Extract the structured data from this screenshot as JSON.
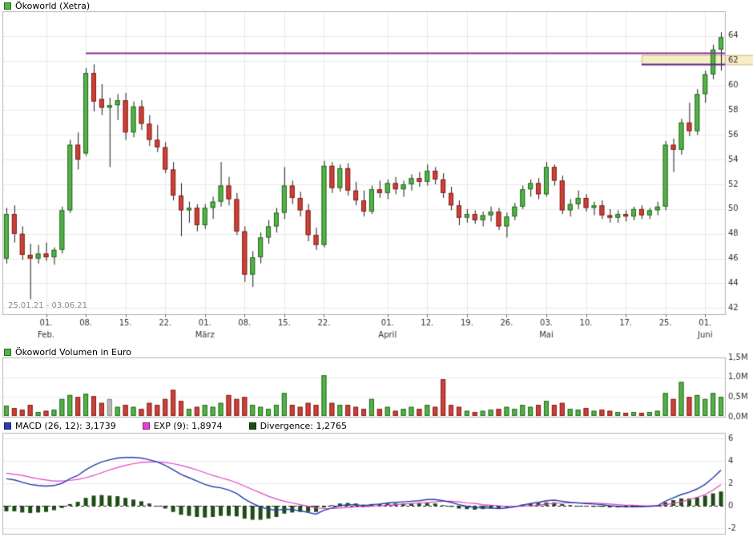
{
  "page": {
    "title": "Ökoworld (Xetra)"
  },
  "panels": {
    "price": {
      "legend": "Ökoworld (Xetra)",
      "swatch": "#57b04a",
      "swatch_border": "#1f6e1a"
    },
    "volume": {
      "legend": "Ökoworld Volumen in Euro",
      "swatch": "#57b04a",
      "swatch_border": "#1f6e1a"
    },
    "macd": {
      "items": [
        {
          "label": "MACD (26, 12): 3,1739",
          "swatch": "#2b3db0",
          "swatch_border": "#1a2566"
        },
        {
          "label": "EXP (9): 1,8974",
          "swatch": "#e145cb",
          "swatch_border": "#8e2380"
        },
        {
          "label": "Divergence: 1,2765",
          "swatch": "#1e4d15",
          "swatch_border": "#0f2e0a"
        }
      ]
    }
  },
  "chart_data": [
    {
      "type": "candlestick",
      "title": "Ökoworld (Xetra)",
      "date_range_label": "25.01.21 - 03.06.21",
      "ylim": [
        41.5,
        66
      ],
      "y_ticks": [
        {
          "v": 42,
          "label": "42"
        },
        {
          "v": 44,
          "label": "44"
        },
        {
          "v": 46,
          "label": "46"
        },
        {
          "v": 48,
          "label": "48"
        },
        {
          "v": 50,
          "label": "50"
        },
        {
          "v": 52,
          "label": "52"
        },
        {
          "v": 54,
          "label": "54"
        },
        {
          "v": 56,
          "label": "56"
        },
        {
          "v": 58,
          "label": "58"
        },
        {
          "v": 60,
          "label": "60"
        },
        {
          "v": 62,
          "label": "62"
        },
        {
          "v": 64,
          "label": "64"
        }
      ],
      "x_ticks_days": [
        {
          "i": 5,
          "label": "01."
        },
        {
          "i": 10,
          "label": "08."
        },
        {
          "i": 15,
          "label": "15."
        },
        {
          "i": 20,
          "label": "22."
        },
        {
          "i": 25,
          "label": "01."
        },
        {
          "i": 30,
          "label": "08."
        },
        {
          "i": 35,
          "label": "15."
        },
        {
          "i": 40,
          "label": "22."
        },
        {
          "i": 48,
          "label": "01."
        },
        {
          "i": 53,
          "label": "12."
        },
        {
          "i": 58,
          "label": "19."
        },
        {
          "i": 63,
          "label": "26."
        },
        {
          "i": 68,
          "label": "03."
        },
        {
          "i": 73,
          "label": "10."
        },
        {
          "i": 78,
          "label": "17."
        },
        {
          "i": 83,
          "label": "25."
        },
        {
          "i": 88,
          "label": "01."
        }
      ],
      "x_ticks_months": [
        {
          "i": 5,
          "label": "Feb."
        },
        {
          "i": 25,
          "label": "März"
        },
        {
          "i": 48,
          "label": "April"
        },
        {
          "i": 68,
          "label": "Mai"
        },
        {
          "i": 88,
          "label": "Juni"
        }
      ],
      "candles": [
        [
          46.0,
          50.1,
          45.6,
          49.6
        ],
        [
          49.6,
          50.3,
          47.3,
          48.0
        ],
        [
          48.0,
          48.6,
          45.9,
          46.3
        ],
        [
          46.3,
          47.2,
          42.7,
          46.0
        ],
        [
          46.0,
          47.1,
          45.6,
          46.4
        ],
        [
          46.4,
          47.3,
          45.8,
          46.1
        ],
        [
          46.1,
          46.9,
          45.5,
          46.7
        ],
        [
          46.7,
          50.2,
          46.4,
          49.9
        ],
        [
          49.9,
          55.6,
          49.7,
          55.2
        ],
        [
          55.2,
          56.2,
          53.2,
          54.0
        ],
        [
          54.5,
          61.4,
          54.3,
          61.0
        ],
        [
          61.0,
          61.7,
          57.9,
          58.7
        ],
        [
          58.9,
          60.1,
          57.6,
          58.2
        ],
        [
          58.2,
          59.0,
          53.4,
          58.4
        ],
        [
          58.4,
          59.3,
          57.2,
          58.8
        ],
        [
          58.8,
          59.4,
          55.6,
          56.2
        ],
        [
          56.2,
          58.7,
          55.8,
          58.3
        ],
        [
          58.3,
          58.8,
          56.4,
          56.9
        ],
        [
          56.9,
          57.6,
          55.1,
          55.6
        ],
        [
          55.6,
          56.8,
          54.6,
          55.0
        ],
        [
          55.0,
          55.4,
          52.9,
          53.2
        ],
        [
          53.2,
          53.8,
          50.7,
          51.1
        ],
        [
          51.1,
          52.1,
          47.8,
          49.9
        ],
        [
          49.9,
          50.6,
          48.9,
          50.1
        ],
        [
          50.1,
          50.4,
          48.2,
          48.7
        ],
        [
          48.7,
          50.4,
          48.4,
          50.1
        ],
        [
          50.1,
          51.0,
          49.2,
          50.6
        ],
        [
          50.6,
          53.8,
          50.2,
          51.9
        ],
        [
          51.9,
          52.6,
          50.3,
          50.8
        ],
        [
          50.8,
          51.3,
          47.9,
          48.2
        ],
        [
          48.2,
          48.6,
          44.1,
          44.7
        ],
        [
          44.7,
          46.6,
          43.7,
          46.1
        ],
        [
          46.1,
          48.1,
          45.6,
          47.7
        ],
        [
          47.7,
          49.1,
          47.2,
          48.6
        ],
        [
          48.6,
          50.1,
          48.1,
          49.7
        ],
        [
          49.7,
          53.4,
          49.2,
          51.9
        ],
        [
          51.9,
          52.3,
          50.4,
          50.9
        ],
        [
          50.9,
          51.4,
          49.4,
          49.9
        ],
        [
          49.9,
          50.4,
          47.4,
          47.9
        ],
        [
          47.9,
          48.5,
          46.7,
          47.1
        ],
        [
          47.1,
          53.9,
          46.9,
          53.5
        ],
        [
          53.5,
          53.8,
          51.3,
          51.7
        ],
        [
          51.7,
          53.6,
          51.4,
          53.3
        ],
        [
          53.3,
          53.7,
          51.1,
          51.5
        ],
        [
          51.5,
          52.2,
          50.3,
          50.7
        ],
        [
          50.7,
          51.5,
          49.4,
          49.8
        ],
        [
          49.8,
          51.9,
          49.6,
          51.6
        ],
        [
          51.6,
          52.3,
          50.9,
          51.3
        ],
        [
          51.3,
          52.4,
          50.8,
          52.1
        ],
        [
          52.1,
          52.6,
          51.2,
          51.6
        ],
        [
          51.6,
          52.3,
          51.0,
          52.0
        ],
        [
          52.0,
          52.8,
          51.5,
          52.5
        ],
        [
          52.5,
          53.0,
          51.8,
          52.2
        ],
        [
          52.2,
          53.6,
          51.9,
          53.1
        ],
        [
          53.1,
          53.4,
          52.0,
          52.4
        ],
        [
          52.4,
          52.9,
          50.9,
          51.3
        ],
        [
          51.3,
          51.8,
          49.9,
          50.3
        ],
        [
          50.3,
          50.7,
          48.7,
          49.3
        ],
        [
          49.3,
          50.0,
          48.9,
          49.6
        ],
        [
          49.6,
          49.9,
          48.8,
          49.1
        ],
        [
          49.1,
          49.8,
          48.6,
          49.5
        ],
        [
          49.5,
          50.2,
          49.0,
          49.8
        ],
        [
          49.8,
          50.1,
          48.3,
          48.6
        ],
        [
          48.6,
          49.7,
          47.7,
          49.4
        ],
        [
          49.4,
          50.5,
          49.1,
          50.2
        ],
        [
          50.2,
          51.9,
          50.0,
          51.6
        ],
        [
          51.6,
          52.4,
          51.0,
          52.1
        ],
        [
          52.1,
          52.5,
          50.8,
          51.2
        ],
        [
          51.2,
          53.8,
          51.0,
          53.4
        ],
        [
          53.4,
          53.6,
          51.9,
          52.3
        ],
        [
          52.3,
          52.7,
          49.6,
          49.9
        ],
        [
          49.9,
          50.8,
          49.4,
          50.4
        ],
        [
          50.4,
          51.5,
          50.0,
          50.9
        ],
        [
          50.9,
          51.2,
          49.8,
          50.1
        ],
        [
          50.1,
          50.6,
          49.5,
          50.3
        ],
        [
          50.3,
          50.7,
          49.2,
          49.5
        ],
        [
          49.5,
          50.0,
          48.9,
          49.3
        ],
        [
          49.3,
          49.9,
          48.9,
          49.6
        ],
        [
          49.6,
          49.9,
          49.0,
          49.4
        ],
        [
          49.4,
          50.2,
          49.1,
          50.0
        ],
        [
          50.0,
          50.3,
          49.2,
          49.5
        ],
        [
          49.5,
          50.1,
          49.2,
          49.9
        ],
        [
          49.9,
          50.6,
          49.5,
          50.2
        ],
        [
          50.2,
          55.5,
          49.9,
          55.2
        ],
        [
          55.2,
          55.7,
          53.0,
          54.8
        ],
        [
          54.8,
          57.3,
          54.4,
          57.0
        ],
        [
          57.0,
          58.6,
          55.9,
          56.3
        ],
        [
          56.3,
          59.7,
          56.0,
          59.3
        ],
        [
          59.3,
          61.2,
          58.6,
          60.9
        ],
        [
          60.9,
          63.3,
          60.5,
          62.9
        ],
        [
          62.9,
          64.3,
          61.2,
          63.9
        ]
      ],
      "hlines": [
        {
          "value": 62.65,
          "start_index": 10,
          "color": "#8e2f93",
          "width": 2
        },
        {
          "value": 61.7,
          "start_index": 80,
          "color": "#5c2a85",
          "width": 2
        }
      ],
      "band": {
        "y1": 61.7,
        "y2": 62.45,
        "start_index": 80,
        "fill": "#f8eec6",
        "border": "#cbb87a"
      },
      "colors": {
        "up": "#57b04a",
        "up_border": "#1f6e1a",
        "down": "#cf4038",
        "down_border": "#7e221c",
        "wick": "#1a1a1a",
        "grid": "#e9e9e9",
        "border": "#b3b3b3",
        "tick_text": "#333333"
      }
    },
    {
      "type": "bar",
      "title": "Ökoworld Volumen in Euro",
      "ylim": [
        0,
        1.5
      ],
      "y_ticks": [
        {
          "v": 0,
          "label": "0,0M"
        },
        {
          "v": 0.5,
          "label": "0,5M"
        },
        {
          "v": 1.0,
          "label": "1,0M"
        },
        {
          "v": 1.5,
          "label": "1,5M"
        }
      ],
      "values": [
        0.28,
        0.22,
        0.18,
        0.3,
        0.12,
        0.15,
        0.18,
        0.45,
        0.55,
        0.5,
        0.58,
        0.52,
        0.35,
        0.45,
        0.25,
        0.3,
        0.25,
        0.2,
        0.35,
        0.3,
        0.45,
        0.68,
        0.4,
        0.2,
        0.25,
        0.3,
        0.25,
        0.35,
        0.55,
        0.45,
        0.5,
        0.3,
        0.25,
        0.2,
        0.3,
        0.6,
        0.3,
        0.25,
        0.35,
        0.3,
        1.05,
        0.35,
        0.3,
        0.3,
        0.25,
        0.2,
        0.45,
        0.2,
        0.25,
        0.15,
        0.2,
        0.25,
        0.2,
        0.3,
        0.25,
        0.95,
        0.3,
        0.25,
        0.15,
        0.12,
        0.15,
        0.18,
        0.2,
        0.25,
        0.2,
        0.3,
        0.25,
        0.3,
        0.4,
        0.3,
        0.35,
        0.2,
        0.18,
        0.22,
        0.15,
        0.18,
        0.15,
        0.12,
        0.1,
        0.12,
        0.1,
        0.12,
        0.15,
        0.6,
        0.45,
        0.88,
        0.5,
        0.55,
        0.45,
        0.6,
        0.5
      ],
      "neutral_indices": [
        13
      ],
      "colors": {
        "neutral": "#b8b8b8"
      }
    },
    {
      "type": "macd",
      "title": "MACD (26, 12)",
      "macd_value": "3,1739",
      "signal_value": "1,8974",
      "divergence_value": "1,2765",
      "ylim": [
        -2.5,
        6.5
      ],
      "y_ticks": [
        {
          "v": -2,
          "label": "-2"
        },
        {
          "v": 0,
          "label": "0"
        },
        {
          "v": 2,
          "label": "2"
        },
        {
          "v": 4,
          "label": "4"
        },
        {
          "v": 6,
          "label": "6"
        }
      ],
      "macd": [
        2.4,
        2.3,
        2.1,
        1.9,
        1.8,
        1.75,
        1.8,
        2.0,
        2.4,
        2.7,
        3.2,
        3.6,
        3.9,
        4.1,
        4.25,
        4.3,
        4.3,
        4.25,
        4.1,
        3.9,
        3.6,
        3.2,
        2.8,
        2.5,
        2.2,
        1.9,
        1.7,
        1.6,
        1.4,
        1.1,
        0.6,
        0.2,
        -0.1,
        -0.3,
        -0.4,
        -0.3,
        -0.35,
        -0.45,
        -0.6,
        -0.75,
        -0.4,
        -0.2,
        0.0,
        0.1,
        0.1,
        0.0,
        0.1,
        0.15,
        0.25,
        0.3,
        0.35,
        0.4,
        0.45,
        0.55,
        0.55,
        0.45,
        0.3,
        0.1,
        -0.05,
        -0.15,
        -0.2,
        -0.2,
        -0.25,
        -0.2,
        -0.1,
        0.05,
        0.2,
        0.3,
        0.45,
        0.5,
        0.4,
        0.3,
        0.25,
        0.2,
        0.15,
        0.1,
        0.0,
        -0.05,
        -0.1,
        -0.1,
        -0.1,
        -0.05,
        0.0,
        0.4,
        0.7,
        1.0,
        1.2,
        1.5,
        1.9,
        2.5,
        3.17
      ],
      "signal": [
        2.9,
        2.8,
        2.7,
        2.55,
        2.4,
        2.3,
        2.2,
        2.2,
        2.25,
        2.35,
        2.5,
        2.7,
        2.95,
        3.2,
        3.4,
        3.6,
        3.75,
        3.85,
        3.9,
        3.9,
        3.85,
        3.75,
        3.6,
        3.4,
        3.2,
        2.95,
        2.7,
        2.5,
        2.3,
        2.05,
        1.75,
        1.45,
        1.15,
        0.85,
        0.6,
        0.4,
        0.25,
        0.1,
        -0.05,
        -0.2,
        -0.25,
        -0.25,
        -0.2,
        -0.15,
        -0.1,
        -0.1,
        -0.05,
        0.0,
        0.05,
        0.1,
        0.15,
        0.2,
        0.25,
        0.3,
        0.35,
        0.4,
        0.4,
        0.35,
        0.25,
        0.2,
        0.1,
        0.05,
        0.0,
        -0.05,
        -0.05,
        -0.05,
        0.0,
        0.05,
        0.15,
        0.2,
        0.25,
        0.25,
        0.25,
        0.25,
        0.25,
        0.2,
        0.15,
        0.1,
        0.05,
        0.05,
        0.0,
        0.0,
        0.0,
        0.1,
        0.2,
        0.35,
        0.55,
        0.75,
        1.0,
        1.4,
        1.9
      ],
      "colors": {
        "macd": "#2b3db0",
        "signal": "#e145cb",
        "divergence": "#1e4d15",
        "zero": "#222222"
      }
    }
  ]
}
